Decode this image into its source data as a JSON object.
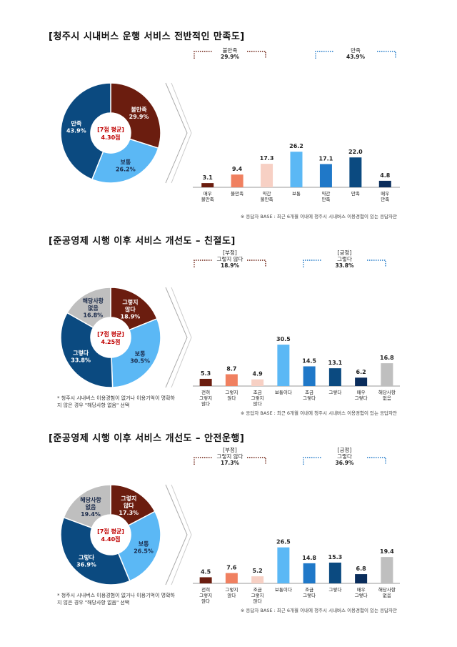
{
  "chart_data": [
    {
      "type": "pie+bar",
      "title": "[청주시 시내버스 운행 서비스 전반적인 만족도]",
      "center_label": "[7점 평균]",
      "center_value": "4.30점",
      "pie": [
        {
          "label": "불만족",
          "value": 29.9,
          "display": "29.9%",
          "color": "#6b1d0f"
        },
        {
          "label": "보통",
          "value": 26.2,
          "display": "26.2%",
          "color": "#5bb8f5"
        },
        {
          "label": "만족",
          "value": 43.9,
          "display": "43.9%",
          "color": "#0b4a80"
        }
      ],
      "groups": [
        {
          "label": "불만족",
          "value": "29.9%",
          "color": "#6b1d0f"
        },
        {
          "label": "만족",
          "value": "43.9%",
          "color": "#1f78c8"
        }
      ],
      "categories": [
        "매우\n불만족",
        "불만족",
        "약간\n불만족",
        "보통",
        "약간\n만족",
        "만족",
        "매우\n만족"
      ],
      "values": [
        3.1,
        9.4,
        17.3,
        26.2,
        17.1,
        22.0,
        4.8
      ],
      "colors": [
        "#6b1d0f",
        "#f08060",
        "#f7d0c4",
        "#5bb8f5",
        "#1f78c8",
        "#0b4a80",
        "#0a2d5c"
      ],
      "note": "",
      "base": "※ 응답자 BASE : 최근 6개월 이내에 청주시 시내버스 이용경험이 있는 응답자만"
    },
    {
      "type": "pie+bar",
      "title": "[준공영제 시행 이후 서비스 개선도 – 친절도]",
      "center_label": "[7점 평균]",
      "center_value": "4.25점",
      "pie": [
        {
          "label": "그렇지\n않다",
          "value": 18.9,
          "display": "18.9%",
          "color": "#6b1d0f"
        },
        {
          "label": "보통",
          "value": 30.5,
          "display": "30.5%",
          "color": "#5bb8f5"
        },
        {
          "label": "그렇다",
          "value": 33.8,
          "display": "33.8%",
          "color": "#0b4a80"
        },
        {
          "label": "해당사항\n없음",
          "value": 16.8,
          "display": "16.8%",
          "color": "#bfbfbf"
        }
      ],
      "groups": [
        {
          "label": "[부정]\n그렇지 않다",
          "value": "18.9%",
          "color": "#6b1d0f"
        },
        {
          "label": "[긍정]\n그렇다",
          "value": "33.8%",
          "color": "#1f78c8"
        }
      ],
      "categories": [
        "전혀\n그렇지\n않다",
        "그렇지\n않다",
        "조금\n그렇지\n않다",
        "보통이다",
        "조금\n그렇다",
        "그렇다",
        "매우\n그렇다",
        "해당사항\n없음"
      ],
      "values": [
        5.3,
        8.7,
        4.9,
        30.5,
        14.5,
        13.1,
        6.2,
        16.8
      ],
      "colors": [
        "#6b1d0f",
        "#f08060",
        "#f7d0c4",
        "#5bb8f5",
        "#1f78c8",
        "#0b4a80",
        "#0a2d5c",
        "#bfbfbf"
      ],
      "note": "* 청주시 시내버스 이용경험이 없거나 이용기억이 명확하지 않은 경우 \"해당사항 없음\" 선택",
      "base": "※ 응답자 BASE : 최근 6개월 이내에 청주시 시내버스 이용경험이 있는 응답자만"
    },
    {
      "type": "pie+bar",
      "title": "[준공영제 시행 이후 서비스 개선도 – 안전운행]",
      "center_label": "[7점 평균]",
      "center_value": "4.40점",
      "pie": [
        {
          "label": "그렇지\n않다",
          "value": 17.3,
          "display": "17.3%",
          "color": "#6b1d0f"
        },
        {
          "label": "보통",
          "value": 26.5,
          "display": "26.5%",
          "color": "#5bb8f5"
        },
        {
          "label": "그렇다",
          "value": 36.9,
          "display": "36.9%",
          "color": "#0b4a80"
        },
        {
          "label": "해당사항\n없음",
          "value": 19.4,
          "display": "19.4%",
          "color": "#bfbfbf"
        }
      ],
      "groups": [
        {
          "label": "[부정]\n그렇지 않다",
          "value": "17.3%",
          "color": "#6b1d0f"
        },
        {
          "label": "[긍정]\n그렇다",
          "value": "36.9%",
          "color": "#1f78c8"
        }
      ],
      "categories": [
        "전혀\n그렇지\n않다",
        "그렇지\n않다",
        "조금\n그렇지\n않다",
        "보통이다",
        "조금\n그렇다",
        "그렇다",
        "매우\n그렇다",
        "해당사항\n없음"
      ],
      "values": [
        4.5,
        7.6,
        5.2,
        26.5,
        14.8,
        15.3,
        6.8,
        19.4
      ],
      "colors": [
        "#6b1d0f",
        "#f08060",
        "#f7d0c4",
        "#5bb8f5",
        "#1f78c8",
        "#0b4a80",
        "#0a2d5c",
        "#bfbfbf"
      ],
      "note": "* 청주시 시내버스 이용경험이 없거나 이용기억이 명확하지 않은 경우 \"해당사항 없음\" 선택",
      "base": "※ 응답자 BASE : 최근 6개월 이내에 청주시 시내버스 이용경험이 있는 응답자만"
    }
  ]
}
